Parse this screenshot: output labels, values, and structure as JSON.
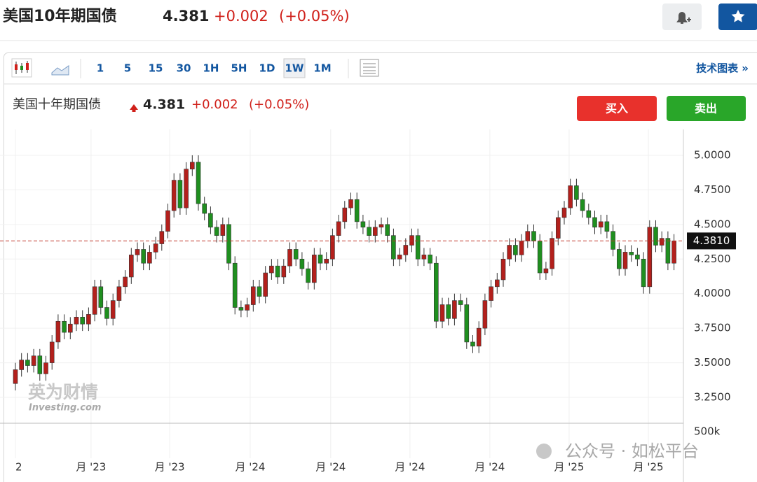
{
  "header": {
    "title": "美国10年期国债",
    "price": "4.381",
    "change": "+0.002",
    "change_pct": "(+0.05%)"
  },
  "toolbar": {
    "intervals": [
      "1",
      "5",
      "15",
      "30",
      "1H",
      "5H",
      "1D",
      "1W",
      "1M"
    ],
    "active": "1W",
    "link": "技术图表 »"
  },
  "chart_header": {
    "name": "美国十年期国债",
    "price": "4.381",
    "change": "+0.002",
    "change_pct": "(+0.05%)",
    "buy": "买入",
    "sell": "卖出"
  },
  "watermark": {
    "brand": "英为财情",
    "site": "Investing.com",
    "wechat": "公众号 · 如松平台"
  },
  "chart_data": {
    "type": "candlestick",
    "up_color": "#b3201c",
    "down_color": "#1f8f1f",
    "open": [
      3.35,
      3.45,
      3.52,
      3.48,
      3.55,
      3.42,
      3.5,
      3.65,
      3.8,
      3.72,
      3.78,
      3.83,
      3.78,
      3.85,
      4.05,
      3.9,
      3.82,
      3.95,
      4.05,
      4.12,
      4.28,
      4.32,
      4.22,
      4.3,
      4.36,
      4.45,
      4.6,
      4.82,
      4.62,
      4.9,
      4.95,
      4.65,
      4.58,
      4.48,
      4.42,
      4.5,
      4.22,
      3.9,
      3.88,
      3.92,
      4.05,
      3.98,
      4.15,
      4.2,
      4.12,
      4.2,
      4.32,
      4.25,
      4.18,
      4.08,
      4.28,
      4.22,
      4.25,
      4.42,
      4.52,
      4.62,
      4.68,
      4.52,
      4.48,
      4.42,
      4.48,
      4.5,
      4.42,
      4.25,
      4.28,
      4.35,
      4.42,
      4.25,
      4.28,
      4.22,
      3.8,
      3.92,
      3.82,
      3.95,
      3.92,
      3.65,
      3.62,
      3.75,
      3.95,
      4.05,
      4.1,
      4.25,
      4.35,
      4.28,
      4.38,
      4.45,
      4.38,
      4.15,
      4.18,
      4.4,
      4.55,
      4.62,
      4.78,
      4.68,
      4.6,
      4.55,
      4.48,
      4.52,
      4.45,
      4.32,
      4.18,
      4.3,
      4.28,
      4.25,
      4.05,
      4.48,
      4.35,
      4.4,
      4.22
    ],
    "high": [
      3.5,
      3.57,
      3.57,
      3.6,
      3.6,
      3.55,
      3.7,
      3.85,
      3.85,
      3.83,
      3.88,
      3.88,
      3.9,
      4.1,
      4.1,
      3.95,
      4.0,
      4.1,
      4.17,
      4.33,
      4.37,
      4.37,
      4.35,
      4.41,
      4.5,
      4.65,
      4.87,
      4.87,
      4.95,
      5.0,
      5.0,
      4.7,
      4.63,
      4.53,
      4.55,
      4.55,
      4.27,
      3.95,
      3.97,
      4.1,
      4.1,
      4.2,
      4.25,
      4.25,
      4.25,
      4.37,
      4.37,
      4.3,
      4.23,
      4.33,
      4.33,
      4.3,
      4.47,
      4.57,
      4.67,
      4.73,
      4.73,
      4.57,
      4.53,
      4.53,
      4.55,
      4.55,
      4.47,
      4.33,
      4.4,
      4.47,
      4.47,
      4.33,
      4.33,
      4.27,
      3.97,
      3.97,
      4.0,
      4.0,
      3.97,
      3.7,
      3.8,
      4.0,
      4.1,
      4.15,
      4.3,
      4.4,
      4.4,
      4.43,
      4.5,
      4.5,
      4.43,
      4.23,
      4.45,
      4.6,
      4.67,
      4.83,
      4.83,
      4.73,
      4.65,
      4.6,
      4.57,
      4.57,
      4.5,
      4.37,
      4.35,
      4.35,
      4.33,
      4.3,
      4.53,
      4.53,
      4.45,
      4.45,
      4.43
    ],
    "low": [
      3.3,
      3.4,
      3.43,
      3.43,
      3.37,
      3.37,
      3.45,
      3.6,
      3.67,
      3.67,
      3.73,
      3.73,
      3.73,
      3.8,
      3.85,
      3.77,
      3.77,
      3.9,
      4.0,
      4.07,
      4.23,
      4.17,
      4.17,
      4.25,
      4.31,
      4.4,
      4.55,
      4.57,
      4.57,
      4.85,
      4.6,
      4.53,
      4.43,
      4.37,
      4.37,
      4.17,
      3.85,
      3.83,
      3.83,
      3.87,
      3.93,
      3.93,
      4.1,
      4.07,
      4.07,
      4.15,
      4.2,
      4.13,
      4.03,
      4.03,
      4.17,
      4.17,
      4.2,
      4.37,
      4.47,
      4.57,
      4.47,
      4.43,
      4.37,
      4.37,
      4.43,
      4.37,
      4.2,
      4.2,
      4.23,
      4.3,
      4.2,
      4.2,
      4.17,
      3.75,
      3.75,
      3.77,
      3.77,
      3.87,
      3.6,
      3.57,
      3.57,
      3.7,
      3.9,
      4.0,
      4.05,
      4.2,
      4.23,
      4.23,
      4.33,
      4.33,
      4.1,
      4.1,
      4.13,
      4.35,
      4.5,
      4.57,
      4.63,
      4.55,
      4.5,
      4.43,
      4.43,
      4.4,
      4.27,
      4.13,
      4.13,
      4.23,
      4.2,
      4.0,
      4.0,
      4.3,
      4.3,
      4.17,
      4.17
    ],
    "close": [
      3.45,
      3.52,
      3.48,
      3.55,
      3.42,
      3.5,
      3.65,
      3.8,
      3.72,
      3.78,
      3.83,
      3.78,
      3.85,
      4.05,
      3.9,
      3.82,
      3.95,
      4.05,
      4.12,
      4.28,
      4.32,
      4.22,
      4.3,
      4.36,
      4.45,
      4.6,
      4.82,
      4.62,
      4.9,
      4.95,
      4.65,
      4.58,
      4.48,
      4.42,
      4.5,
      4.22,
      3.9,
      3.88,
      3.92,
      4.05,
      3.98,
      4.15,
      4.2,
      4.12,
      4.2,
      4.32,
      4.25,
      4.18,
      4.08,
      4.28,
      4.22,
      4.25,
      4.42,
      4.52,
      4.62,
      4.68,
      4.52,
      4.48,
      4.42,
      4.48,
      4.5,
      4.42,
      4.25,
      4.28,
      4.35,
      4.42,
      4.25,
      4.28,
      4.22,
      3.8,
      3.92,
      3.82,
      3.95,
      3.92,
      3.65,
      3.62,
      3.75,
      3.95,
      4.05,
      4.1,
      4.25,
      4.35,
      4.28,
      4.38,
      4.45,
      4.38,
      4.15,
      4.18,
      4.4,
      4.55,
      4.62,
      4.78,
      4.68,
      4.6,
      4.55,
      4.48,
      4.52,
      4.45,
      4.32,
      4.18,
      4.3,
      4.28,
      4.25,
      4.05,
      4.48,
      4.35,
      4.4,
      4.22,
      4.381
    ],
    "xlim": [
      -0.5,
      109.5
    ],
    "xticks": [
      {
        "value": 0,
        "label": "2"
      },
      {
        "value": 12.4,
        "label": "月 '23"
      },
      {
        "value": 25.3,
        "label": "月 '23"
      },
      {
        "value": 38.5,
        "label": "月 '24"
      },
      {
        "value": 51.7,
        "label": "月 '24"
      },
      {
        "value": 64.7,
        "label": "月 '24"
      },
      {
        "value": 77.8,
        "label": "月 '24"
      },
      {
        "value": 90.8,
        "label": "月 '25"
      },
      {
        "value": 103.8,
        "label": "月 '25"
      }
    ],
    "ylim": [
      3.063,
      5.187
    ],
    "yticks": [
      {
        "value": 5,
        "label": "5.0000"
      },
      {
        "value": 4.75,
        "label": "4.7500"
      },
      {
        "value": 4.5,
        "label": "4.5000"
      },
      {
        "value": 4.25,
        "label": "4.2500"
      },
      {
        "value": 4,
        "label": "4.0000"
      },
      {
        "value": 3.75,
        "label": "3.7500"
      },
      {
        "value": 3.5,
        "label": "3.5000"
      },
      {
        "value": 3.25,
        "label": "3.2500"
      }
    ],
    "grid": true,
    "current": 4.381,
    "current_label": "4.3810",
    "volume_label": "500k"
  }
}
